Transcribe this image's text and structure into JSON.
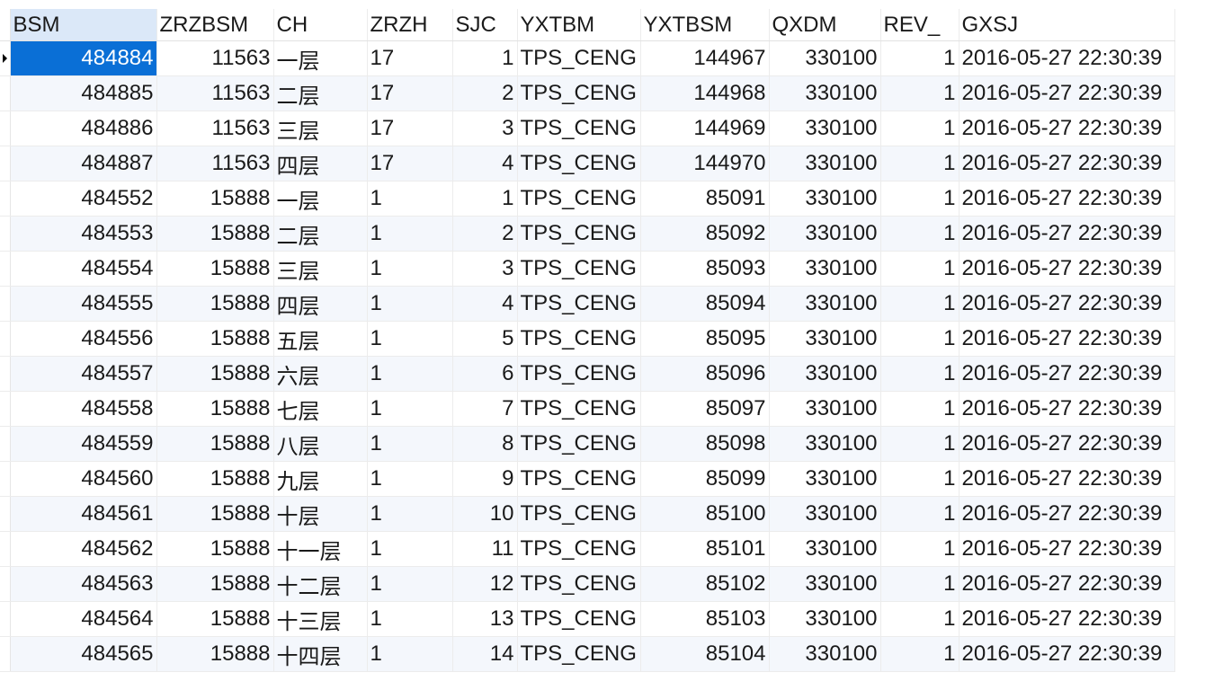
{
  "columns": [
    "BSM",
    "ZRZBSM",
    "CH",
    "ZRZH",
    "SJC",
    "YXTBM",
    "YXTBSM",
    "QXDM",
    "REV_",
    "GXSJ"
  ],
  "rows": [
    [
      "484884",
      "11563",
      "一层",
      "17",
      "1",
      "TPS_CENG",
      "144967",
      "330100",
      "1",
      "2016-05-27 22:30:39"
    ],
    [
      "484885",
      "11563",
      "二层",
      "17",
      "2",
      "TPS_CENG",
      "144968",
      "330100",
      "1",
      "2016-05-27 22:30:39"
    ],
    [
      "484886",
      "11563",
      "三层",
      "17",
      "3",
      "TPS_CENG",
      "144969",
      "330100",
      "1",
      "2016-05-27 22:30:39"
    ],
    [
      "484887",
      "11563",
      "四层",
      "17",
      "4",
      "TPS_CENG",
      "144970",
      "330100",
      "1",
      "2016-05-27 22:30:39"
    ],
    [
      "484552",
      "15888",
      "一层",
      "1",
      "1",
      "TPS_CENG",
      "85091",
      "330100",
      "1",
      "2016-05-27 22:30:39"
    ],
    [
      "484553",
      "15888",
      "二层",
      "1",
      "2",
      "TPS_CENG",
      "85092",
      "330100",
      "1",
      "2016-05-27 22:30:39"
    ],
    [
      "484554",
      "15888",
      "三层",
      "1",
      "3",
      "TPS_CENG",
      "85093",
      "330100",
      "1",
      "2016-05-27 22:30:39"
    ],
    [
      "484555",
      "15888",
      "四层",
      "1",
      "4",
      "TPS_CENG",
      "85094",
      "330100",
      "1",
      "2016-05-27 22:30:39"
    ],
    [
      "484556",
      "15888",
      "五层",
      "1",
      "5",
      "TPS_CENG",
      "85095",
      "330100",
      "1",
      "2016-05-27 22:30:39"
    ],
    [
      "484557",
      "15888",
      "六层",
      "1",
      "6",
      "TPS_CENG",
      "85096",
      "330100",
      "1",
      "2016-05-27 22:30:39"
    ],
    [
      "484558",
      "15888",
      "七层",
      "1",
      "7",
      "TPS_CENG",
      "85097",
      "330100",
      "1",
      "2016-05-27 22:30:39"
    ],
    [
      "484559",
      "15888",
      "八层",
      "1",
      "8",
      "TPS_CENG",
      "85098",
      "330100",
      "1",
      "2016-05-27 22:30:39"
    ],
    [
      "484560",
      "15888",
      "九层",
      "1",
      "9",
      "TPS_CENG",
      "85099",
      "330100",
      "1",
      "2016-05-27 22:30:39"
    ],
    [
      "484561",
      "15888",
      "十层",
      "1",
      "10",
      "TPS_CENG",
      "85100",
      "330100",
      "1",
      "2016-05-27 22:30:39"
    ],
    [
      "484562",
      "15888",
      "十一层",
      "1",
      "11",
      "TPS_CENG",
      "85101",
      "330100",
      "1",
      "2016-05-27 22:30:39"
    ],
    [
      "484563",
      "15888",
      "十二层",
      "1",
      "12",
      "TPS_CENG",
      "85102",
      "330100",
      "1",
      "2016-05-27 22:30:39"
    ],
    [
      "484564",
      "15888",
      "十三层",
      "1",
      "13",
      "TPS_CENG",
      "85103",
      "330100",
      "1",
      "2016-05-27 22:30:39"
    ],
    [
      "484565",
      "15888",
      "十四层",
      "1",
      "14",
      "TPS_CENG",
      "85104",
      "330100",
      "1",
      "2016-05-27 22:30:39"
    ]
  ],
  "column_align": [
    "right",
    "right",
    "left",
    "left",
    "right",
    "left",
    "right",
    "right",
    "right",
    "left"
  ],
  "selection": {
    "row": 0,
    "column": 0
  },
  "icons": {
    "current_row_indicator": "row-pointer-icon"
  },
  "colors": {
    "selected_cell": "#0a6fd6",
    "selected_header": "#dbe8f8",
    "alt_row": "#f4f7fc"
  }
}
